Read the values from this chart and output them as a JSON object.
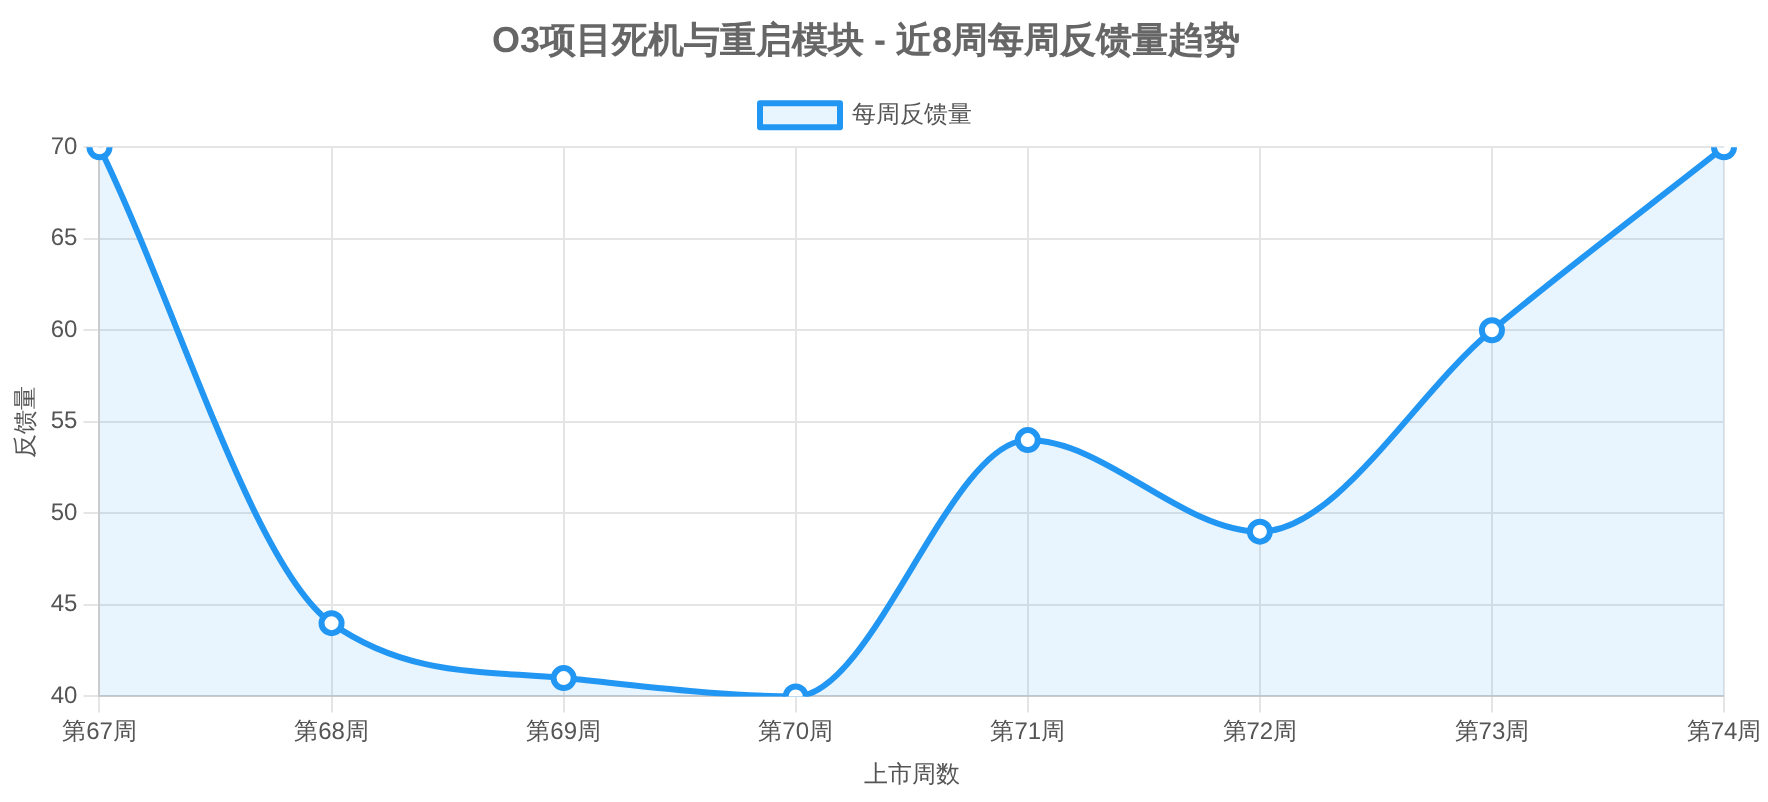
{
  "chart_data": {
    "type": "area",
    "title": "O3项目死机与重启模块 - 近8周每周反馈量趋势",
    "xlabel": "上市周数",
    "ylabel": "反馈量",
    "categories": [
      "第67周",
      "第68周",
      "第69周",
      "第70周",
      "第71周",
      "第72周",
      "第73周",
      "第74周"
    ],
    "series": [
      {
        "name": "每周反馈量",
        "color": "#2196f3",
        "values": [
          70,
          44,
          41,
          40,
          54,
          49,
          60,
          70
        ]
      }
    ],
    "ylim": [
      40,
      70
    ],
    "yticks": [
      40,
      45,
      50,
      55,
      60,
      65,
      70
    ],
    "grid": true,
    "legend": "top",
    "marker": "circle",
    "line_style": "solid"
  }
}
